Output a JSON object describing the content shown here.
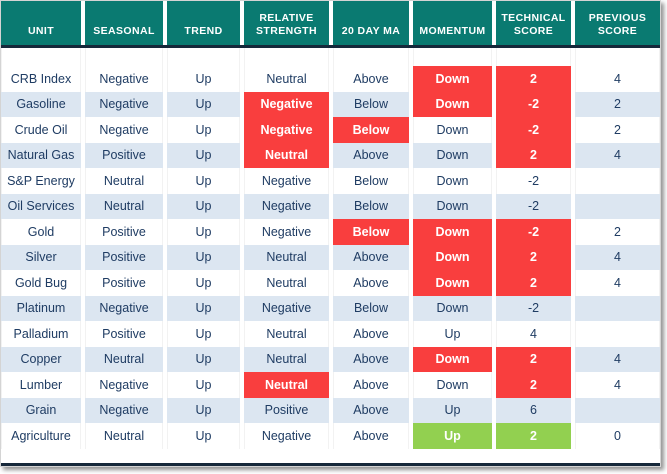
{
  "colors": {
    "header_bg": "#0A7A71",
    "rule": "#16283A",
    "row_stripe": "#DCE6F1",
    "text": "#1F3C63",
    "negative_highlight": "#F93E3E",
    "positive_highlight": "#92D050"
  },
  "chart_data": {
    "type": "table",
    "columns": [
      {
        "key": "unit",
        "label": "UNIT"
      },
      {
        "key": "seasonal",
        "label": "SEASONAL"
      },
      {
        "key": "trend",
        "label": "TREND"
      },
      {
        "key": "relative_strength",
        "label": "RELATIVE STRENGTH"
      },
      {
        "key": "ma20",
        "label": "20 DAY MA"
      },
      {
        "key": "momentum",
        "label": "MOMENTUM"
      },
      {
        "key": "technical_score",
        "label": "TECHNICAL SCORE"
      },
      {
        "key": "previous_score",
        "label": "PREVIOUS SCORE"
      }
    ],
    "rows": [
      {
        "unit": "CRB Index",
        "seasonal": "Negative",
        "trend": "Up",
        "relative_strength": "Neutral",
        "ma20": "Above",
        "momentum": "Down",
        "technical_score": 2,
        "previous_score": 4,
        "highlights": {
          "momentum": "red",
          "technical_score": "red"
        }
      },
      {
        "unit": "Gasoline",
        "seasonal": "Negative",
        "trend": "Up",
        "relative_strength": "Negative",
        "ma20": "Below",
        "momentum": "Down",
        "technical_score": -2,
        "previous_score": 2,
        "highlights": {
          "relative_strength": "red",
          "momentum": "red",
          "technical_score": "red"
        }
      },
      {
        "unit": "Crude Oil",
        "seasonal": "Negative",
        "trend": "Up",
        "relative_strength": "Negative",
        "ma20": "Below",
        "momentum": "Down",
        "technical_score": -2,
        "previous_score": 2,
        "highlights": {
          "relative_strength": "red",
          "ma20": "red",
          "technical_score": "red"
        }
      },
      {
        "unit": "Natural Gas",
        "seasonal": "Positive",
        "trend": "Up",
        "relative_strength": "Neutral",
        "ma20": "Above",
        "momentum": "Down",
        "technical_score": 2,
        "previous_score": 4,
        "highlights": {
          "relative_strength": "red",
          "technical_score": "red"
        }
      },
      {
        "unit": "S&P Energy",
        "seasonal": "Neutral",
        "trend": "Up",
        "relative_strength": "Negative",
        "ma20": "Below",
        "momentum": "Down",
        "technical_score": -2,
        "previous_score": null,
        "highlights": {}
      },
      {
        "unit": "Oil Services",
        "seasonal": "Neutral",
        "trend": "Up",
        "relative_strength": "Negative",
        "ma20": "Below",
        "momentum": "Down",
        "technical_score": -2,
        "previous_score": null,
        "highlights": {}
      },
      {
        "unit": "Gold",
        "seasonal": "Positive",
        "trend": "Up",
        "relative_strength": "Negative",
        "ma20": "Below",
        "momentum": "Down",
        "technical_score": -2,
        "previous_score": 2,
        "highlights": {
          "ma20": "red",
          "momentum": "red",
          "technical_score": "red"
        }
      },
      {
        "unit": "Silver",
        "seasonal": "Positive",
        "trend": "Up",
        "relative_strength": "Neutral",
        "ma20": "Above",
        "momentum": "Down",
        "technical_score": 2,
        "previous_score": 4,
        "highlights": {
          "momentum": "red",
          "technical_score": "red"
        }
      },
      {
        "unit": "Gold Bug",
        "seasonal": "Positive",
        "trend": "Up",
        "relative_strength": "Neutral",
        "ma20": "Above",
        "momentum": "Down",
        "technical_score": 2,
        "previous_score": 4,
        "highlights": {
          "momentum": "red",
          "technical_score": "red"
        }
      },
      {
        "unit": "Platinum",
        "seasonal": "Negative",
        "trend": "Up",
        "relative_strength": "Negative",
        "ma20": "Below",
        "momentum": "Down",
        "technical_score": -2,
        "previous_score": null,
        "highlights": {}
      },
      {
        "unit": "Palladium",
        "seasonal": "Positive",
        "trend": "Up",
        "relative_strength": "Neutral",
        "ma20": "Above",
        "momentum": "Up",
        "technical_score": 4,
        "previous_score": null,
        "highlights": {}
      },
      {
        "unit": "Copper",
        "seasonal": "Neutral",
        "trend": "Up",
        "relative_strength": "Neutral",
        "ma20": "Above",
        "momentum": "Down",
        "technical_score": 2,
        "previous_score": 4,
        "highlights": {
          "momentum": "red",
          "technical_score": "red"
        }
      },
      {
        "unit": "Lumber",
        "seasonal": "Negative",
        "trend": "Up",
        "relative_strength": "Neutral",
        "ma20": "Above",
        "momentum": "Down",
        "technical_score": 2,
        "previous_score": 4,
        "highlights": {
          "relative_strength": "red",
          "technical_score": "red"
        }
      },
      {
        "unit": "Grain",
        "seasonal": "Negative",
        "trend": "Up",
        "relative_strength": "Positive",
        "ma20": "Above",
        "momentum": "Up",
        "technical_score": 6,
        "previous_score": null,
        "highlights": {}
      },
      {
        "unit": "Agriculture",
        "seasonal": "Neutral",
        "trend": "Up",
        "relative_strength": "Negative",
        "ma20": "Above",
        "momentum": "Up",
        "technical_score": 2,
        "previous_score": 0,
        "highlights": {
          "momentum": "green",
          "technical_score": "green"
        }
      }
    ]
  }
}
